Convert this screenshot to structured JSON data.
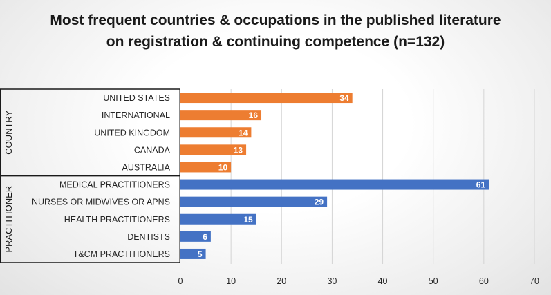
{
  "chart_data": {
    "type": "bar",
    "orientation": "horizontal",
    "title": "Most frequent countries & occupations in the published literature on registration & continuing competence (n=132)",
    "xlim": [
      0,
      70
    ],
    "x_ticks": [
      0,
      10,
      20,
      30,
      40,
      50,
      60,
      70
    ],
    "grid": true,
    "groups": [
      {
        "name": "COUNTRY",
        "color": "#ED7D31",
        "categories": [
          "UNITED STATES",
          "INTERNATIONAL",
          "UNITED KINGDOM",
          "CANADA",
          "AUSTRALIA"
        ],
        "values": [
          34,
          16,
          14,
          13,
          10
        ]
      },
      {
        "name": "PRACTITIONER",
        "color": "#4472C4",
        "categories": [
          "MEDICAL PRACTITIONERS",
          "NURSES OR MIDWIVES OR APNS",
          "HEALTH PRACTITIONERS",
          "DENTISTS",
          "T&CM PRACTITIONERS"
        ],
        "values": [
          61,
          29,
          15,
          6,
          5
        ]
      }
    ]
  }
}
